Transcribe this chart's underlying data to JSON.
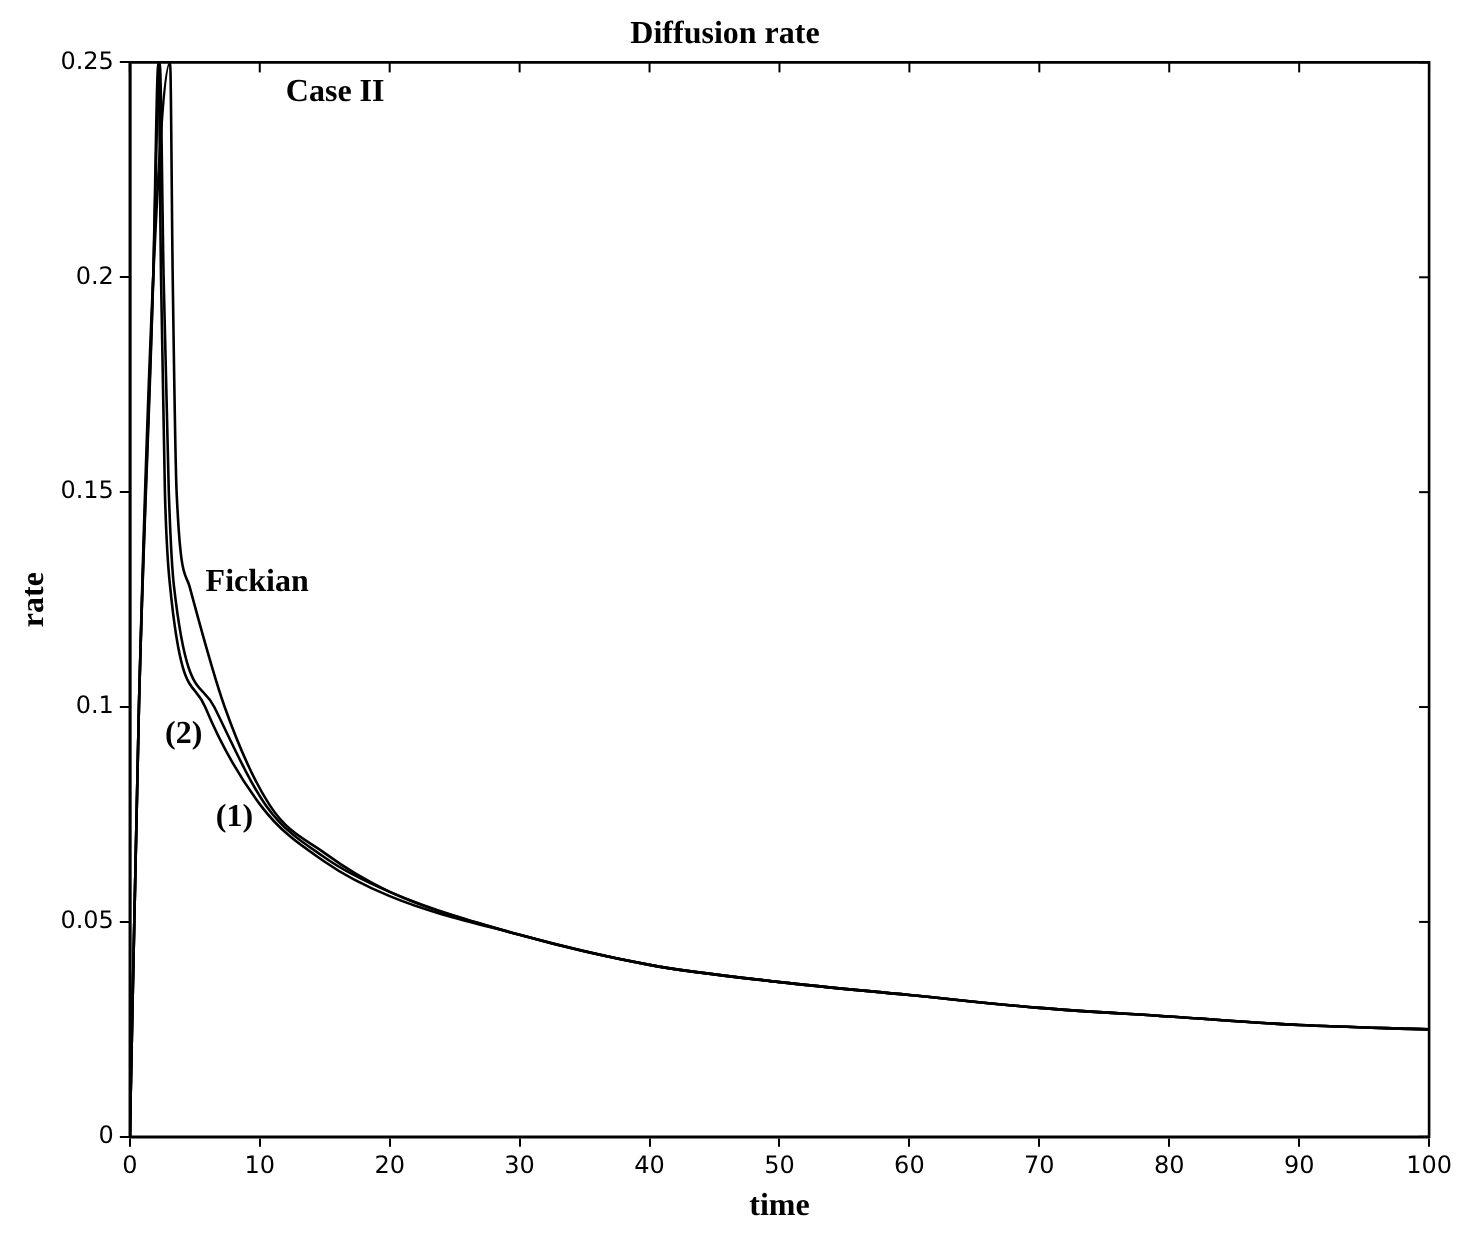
{
  "chart_data": {
    "type": "line",
    "title": "Diffusion rate",
    "xlabel": "time",
    "ylabel": "rate",
    "xlim": [
      0,
      100
    ],
    "xticks": [
      0,
      10,
      20,
      30,
      40,
      50,
      60,
      70,
      80,
      90,
      100
    ],
    "ylim": [
      0,
      0.25
    ],
    "yticks": [
      0,
      0.05,
      0.1,
      0.15,
      0.2,
      0.25
    ],
    "grid": false,
    "legend": false,
    "marker": "none",
    "line_style": "solid",
    "series": [
      {
        "name": "Fickian",
        "color": "#000000",
        "x": [
          0,
          0.7,
          1.8,
          3.1,
          3.3,
          3.6,
          4.6,
          7.3,
          10.8,
          15,
          20,
          30,
          40,
          50,
          60,
          70,
          80,
          90,
          100
        ],
        "values": [
          0,
          0.1,
          0.2,
          0.25,
          0.2,
          0.15,
          0.128,
          0.1,
          0.077,
          0.066,
          0.057,
          0.047,
          0.04,
          0.036,
          0.033,
          0.03,
          0.028,
          0.026,
          0.025
        ]
      },
      {
        "name": "(2)",
        "color": "#000000",
        "x": [
          0,
          0.7,
          1.8,
          2.3,
          2.6,
          3.0,
          3.4,
          6.5,
          10.5,
          15,
          20,
          30,
          40,
          50,
          60,
          70,
          80,
          90,
          100
        ],
        "values": [
          0,
          0.1,
          0.2,
          0.25,
          0.2,
          0.15,
          0.128,
          0.1,
          0.077,
          0.065,
          0.057,
          0.047,
          0.04,
          0.036,
          0.033,
          0.03,
          0.028,
          0.026,
          0.025
        ]
      },
      {
        "name": "(1)",
        "color": "#000000",
        "x": [
          0,
          0.7,
          1.8,
          2.2,
          2.4,
          2.7,
          3.1,
          5.8,
          10.1,
          15,
          20,
          30,
          40,
          50,
          60,
          70,
          80,
          90,
          100
        ],
        "values": [
          0,
          0.1,
          0.2,
          0.25,
          0.2,
          0.15,
          0.128,
          0.1,
          0.077,
          0.064,
          0.056,
          0.047,
          0.04,
          0.036,
          0.033,
          0.03,
          0.028,
          0.026,
          0.025
        ]
      }
    ],
    "annotations": [
      "Case II"
    ]
  }
}
